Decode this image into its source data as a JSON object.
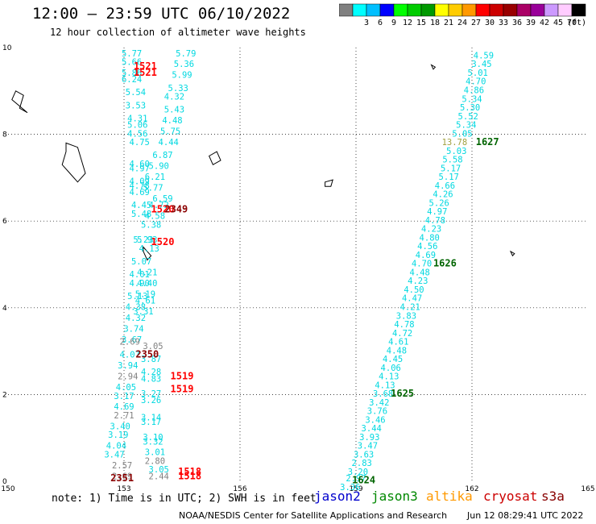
{
  "header": {
    "title": "12:00 – 23:59 UTC 06/10/2022",
    "subtitle": "12 hour collection of altimeter wave heights"
  },
  "color_scale": {
    "unit": "(ft)",
    "bins": [
      {
        "label": "",
        "color": "#808080"
      },
      {
        "label": "3",
        "color": "#00ffff"
      },
      {
        "label": "6",
        "color": "#00bfff"
      },
      {
        "label": "9",
        "color": "#0000ff"
      },
      {
        "label": "12",
        "color": "#00ff00"
      },
      {
        "label": "15",
        "color": "#00cc00"
      },
      {
        "label": "18",
        "color": "#009900"
      },
      {
        "label": "21",
        "color": "#ffff00"
      },
      {
        "label": "24",
        "color": "#ffcc00"
      },
      {
        "label": "27",
        "color": "#ff9900"
      },
      {
        "label": "30",
        "color": "#ff0000"
      },
      {
        "label": "33",
        "color": "#cc0000"
      },
      {
        "label": "36",
        "color": "#990000"
      },
      {
        "label": "39",
        "color": "#aa0066"
      },
      {
        "label": "42",
        "color": "#990099"
      },
      {
        "label": "45",
        "color": "#cc99ff"
      },
      {
        "label": "70",
        "color": "#ffccff"
      },
      {
        "label": "",
        "color": "#000000"
      }
    ]
  },
  "map": {
    "x_range": [
      150,
      165
    ],
    "y_range": [
      0,
      10
    ],
    "x_ticks": [
      "150",
      "153",
      "156",
      "159",
      "162",
      "165"
    ],
    "y_ticks": [
      "0",
      "2",
      "4",
      "6",
      "8",
      "10"
    ],
    "grid": "dotted",
    "islands": [
      {
        "name": "",
        "points": [
          [
            150.1,
            8.8
          ],
          [
            150.2,
            9.0
          ],
          [
            150.4,
            8.9
          ],
          [
            150.3,
            8.6
          ],
          [
            150.5,
            8.5
          ]
        ]
      },
      {
        "name": "",
        "points": [
          [
            151.5,
            7.8
          ],
          [
            151.8,
            7.7
          ],
          [
            151.9,
            7.4
          ],
          [
            152.0,
            7.1
          ],
          [
            151.8,
            6.9
          ],
          [
            151.6,
            7.1
          ],
          [
            151.4,
            7.3
          ],
          [
            151.5,
            7.6
          ]
        ]
      },
      {
        "name": "",
        "points": [
          [
            155.2,
            7.5
          ],
          [
            155.4,
            7.6
          ],
          [
            155.5,
            7.4
          ],
          [
            155.3,
            7.3
          ]
        ]
      },
      {
        "name": "",
        "points": [
          [
            158.2,
            6.9
          ],
          [
            158.4,
            6.95
          ],
          [
            158.35,
            6.8
          ],
          [
            158.2,
            6.8
          ]
        ]
      },
      {
        "name": "",
        "points": [
          [
            153.5,
            5.4
          ],
          [
            153.6,
            5.3
          ],
          [
            153.7,
            5.2
          ],
          [
            153.6,
            5.1
          ],
          [
            153.5,
            5.3
          ]
        ]
      },
      {
        "name": "",
        "points": [
          [
            160.95,
            9.6
          ],
          [
            161.05,
            9.55
          ],
          [
            161.0,
            9.5
          ]
        ]
      },
      {
        "name": "",
        "points": [
          [
            163.0,
            5.3
          ],
          [
            163.1,
            5.25
          ],
          [
            163.05,
            5.2
          ]
        ]
      }
    ],
    "tracks": [
      {
        "color": "#00d8e0",
        "points": [
          {
            "x": 153.2,
            "y": 9.8,
            "v": "5.77"
          },
          {
            "x": 153.2,
            "y": 9.6,
            "v": "5.66"
          },
          {
            "x": 153.2,
            "y": 9.35,
            "v": "5.86"
          },
          {
            "x": 153.2,
            "y": 9.2,
            "v": "6.24"
          },
          {
            "x": 153.3,
            "y": 8.9,
            "v": "5.54"
          },
          {
            "x": 153.3,
            "y": 8.6,
            "v": "3.53"
          },
          {
            "x": 153.35,
            "y": 8.3,
            "v": "4.31"
          },
          {
            "x": 153.35,
            "y": 8.15,
            "v": "5.06"
          },
          {
            "x": 153.35,
            "y": 7.95,
            "v": "4.56"
          },
          {
            "x": 153.4,
            "y": 7.75,
            "v": "4.75"
          },
          {
            "x": 153.4,
            "y": 7.25,
            "v": "4.60"
          },
          {
            "x": 153.4,
            "y": 7.15,
            "v": "4.97"
          },
          {
            "x": 153.4,
            "y": 6.85,
            "v": "4.09"
          },
          {
            "x": 153.4,
            "y": 6.75,
            "v": "4.78"
          },
          {
            "x": 153.4,
            "y": 6.6,
            "v": "4.69"
          },
          {
            "x": 153.45,
            "y": 6.3,
            "v": "4.45"
          },
          {
            "x": 153.45,
            "y": 6.1,
            "v": "5.48"
          },
          {
            "x": 153.5,
            "y": 5.5,
            "v": "5.23"
          },
          {
            "x": 153.45,
            "y": 5.0,
            "v": "5.07"
          },
          {
            "x": 153.4,
            "y": 4.7,
            "v": "4.01"
          },
          {
            "x": 153.4,
            "y": 4.5,
            "v": "4.90"
          },
          {
            "x": 153.35,
            "y": 4.2,
            "v": "5.13"
          },
          {
            "x": 153.3,
            "y": 3.95,
            "v": "4.38"
          },
          {
            "x": 153.3,
            "y": 3.7,
            "v": "4.32"
          },
          {
            "x": 153.25,
            "y": 3.45,
            "v": "3.74"
          },
          {
            "x": 153.2,
            "y": 3.2,
            "v": "3.67"
          },
          {
            "x": 153.15,
            "y": 2.85,
            "v": "4.07"
          },
          {
            "x": 153.1,
            "y": 2.6,
            "v": "3.94"
          },
          {
            "x": 153.05,
            "y": 2.1,
            "v": "4.05"
          },
          {
            "x": 153.0,
            "y": 1.9,
            "v": "3.17"
          },
          {
            "x": 153.0,
            "y": 1.65,
            "v": "4.69"
          },
          {
            "x": 152.9,
            "y": 1.2,
            "v": "3.40"
          },
          {
            "x": 152.85,
            "y": 1.0,
            "v": "3.19"
          },
          {
            "x": 152.8,
            "y": 0.75,
            "v": "4.04"
          },
          {
            "x": 152.75,
            "y": 0.55,
            "v": "3.47"
          }
        ]
      },
      {
        "color": "#00d8e0",
        "points": [
          {
            "x": 154.6,
            "y": 9.8,
            "v": "5.79"
          },
          {
            "x": 154.55,
            "y": 9.55,
            "v": "5.36"
          },
          {
            "x": 154.5,
            "y": 9.3,
            "v": "5.99"
          },
          {
            "x": 154.4,
            "y": 9.0,
            "v": "5.33"
          },
          {
            "x": 154.3,
            "y": 8.8,
            "v": "4.32"
          },
          {
            "x": 154.3,
            "y": 8.5,
            "v": "5.43"
          },
          {
            "x": 154.25,
            "y": 8.25,
            "v": "4.48"
          },
          {
            "x": 154.2,
            "y": 8.0,
            "v": "5.75"
          },
          {
            "x": 154.15,
            "y": 7.75,
            "v": "4.44"
          },
          {
            "x": 154.0,
            "y": 7.45,
            "v": "6.87"
          },
          {
            "x": 153.9,
            "y": 7.2,
            "v": "5.90"
          },
          {
            "x": 153.8,
            "y": 6.95,
            "v": "6.21"
          },
          {
            "x": 153.75,
            "y": 6.7,
            "v": "5.77"
          },
          {
            "x": 154.0,
            "y": 6.45,
            "v": "6.59"
          },
          {
            "x": 153.9,
            "y": 6.3,
            "v": "4.72"
          },
          {
            "x": 153.8,
            "y": 6.05,
            "v": "4.58"
          },
          {
            "x": 153.7,
            "y": 5.85,
            "v": "5.38"
          },
          {
            "x": 153.6,
            "y": 5.5,
            "v": "5.93"
          },
          {
            "x": 153.65,
            "y": 5.3,
            "v": "4.13"
          },
          {
            "x": 153.6,
            "y": 4.75,
            "v": "4.21"
          },
          {
            "x": 153.6,
            "y": 4.5,
            "v": "4.40"
          },
          {
            "x": 153.55,
            "y": 4.25,
            "v": "5.19"
          },
          {
            "x": 153.55,
            "y": 4.1,
            "v": "4.61"
          },
          {
            "x": 153.5,
            "y": 3.85,
            "v": "3.31"
          },
          {
            "x": 153.7,
            "y": 2.75,
            "v": "3.87"
          },
          {
            "x": 153.7,
            "y": 2.45,
            "v": "4.28"
          },
          {
            "x": 153.7,
            "y": 2.3,
            "v": "4.83"
          },
          {
            "x": 153.7,
            "y": 1.95,
            "v": "3.27"
          },
          {
            "x": 153.7,
            "y": 1.8,
            "v": "3.26"
          },
          {
            "x": 153.7,
            "y": 1.4,
            "v": "3.14"
          },
          {
            "x": 153.7,
            "y": 1.3,
            "v": "3.17"
          },
          {
            "x": 153.75,
            "y": 0.95,
            "v": "3.10"
          },
          {
            "x": 153.75,
            "y": 0.85,
            "v": "3.32"
          },
          {
            "x": 153.8,
            "y": 0.6,
            "v": "3.01"
          },
          {
            "x": 153.9,
            "y": 0.2,
            "v": "3.05"
          }
        ]
      },
      {
        "color": "#808080",
        "points": [
          {
            "x": 153.15,
            "y": 3.15,
            "v": "2.69"
          },
          {
            "x": 153.1,
            "y": 2.35,
            "v": "2.94"
          },
          {
            "x": 153.0,
            "y": 1.45,
            "v": "2.71"
          },
          {
            "x": 152.95,
            "y": 0.3,
            "v": "2.57"
          },
          {
            "x": 152.95,
            "y": 0.05,
            "v": "2.69"
          },
          {
            "x": 153.8,
            "y": 0.4,
            "v": "2.80"
          },
          {
            "x": 153.9,
            "y": 0.05,
            "v": "2.44"
          },
          {
            "x": 153.75,
            "y": 3.05,
            "v": "3.05"
          }
        ]
      },
      {
        "color": "#00d8e0",
        "points": [
          {
            "x": 162.3,
            "y": 9.75,
            "v": "4.59"
          },
          {
            "x": 162.25,
            "y": 9.55,
            "v": "3.45"
          },
          {
            "x": 162.15,
            "y": 9.35,
            "v": "5.01"
          },
          {
            "x": 162.1,
            "y": 9.15,
            "v": "4.70"
          },
          {
            "x": 162.05,
            "y": 8.95,
            "v": "4.86"
          },
          {
            "x": 162.0,
            "y": 8.75,
            "v": "5.34"
          },
          {
            "x": 161.95,
            "y": 8.55,
            "v": "5.30"
          },
          {
            "x": 161.9,
            "y": 8.35,
            "v": "5.52"
          },
          {
            "x": 161.85,
            "y": 8.15,
            "v": "5.34"
          },
          {
            "x": 161.75,
            "y": 7.95,
            "v": "5.05"
          },
          {
            "x": 161.6,
            "y": 7.55,
            "v": "5.03"
          },
          {
            "x": 161.5,
            "y": 7.35,
            "v": "5.58"
          },
          {
            "x": 161.45,
            "y": 7.15,
            "v": "5.17"
          },
          {
            "x": 161.4,
            "y": 6.95,
            "v": "5.17"
          },
          {
            "x": 161.3,
            "y": 6.75,
            "v": "4.66"
          },
          {
            "x": 161.25,
            "y": 6.55,
            "v": "4.26"
          },
          {
            "x": 161.15,
            "y": 6.35,
            "v": "5.26"
          },
          {
            "x": 161.1,
            "y": 6.15,
            "v": "4.97"
          },
          {
            "x": 161.05,
            "y": 5.95,
            "v": "4.78"
          },
          {
            "x": 160.95,
            "y": 5.75,
            "v": "4.23"
          },
          {
            "x": 160.9,
            "y": 5.55,
            "v": "4.80"
          },
          {
            "x": 160.85,
            "y": 5.35,
            "v": "4.56"
          },
          {
            "x": 160.8,
            "y": 5.15,
            "v": "4.69"
          },
          {
            "x": 160.7,
            "y": 4.95,
            "v": "4.70"
          },
          {
            "x": 160.65,
            "y": 4.75,
            "v": "4.48"
          },
          {
            "x": 160.6,
            "y": 4.55,
            "v": "4.23"
          },
          {
            "x": 160.5,
            "y": 4.35,
            "v": "4.50"
          },
          {
            "x": 160.45,
            "y": 4.15,
            "v": "4.47"
          },
          {
            "x": 160.4,
            "y": 3.95,
            "v": "4.21"
          },
          {
            "x": 160.3,
            "y": 3.75,
            "v": "3.83"
          },
          {
            "x": 160.25,
            "y": 3.55,
            "v": "4.78"
          },
          {
            "x": 160.2,
            "y": 3.35,
            "v": "4.72"
          },
          {
            "x": 160.1,
            "y": 3.15,
            "v": "4.61"
          },
          {
            "x": 160.05,
            "y": 2.95,
            "v": "4.48"
          },
          {
            "x": 159.95,
            "y": 2.75,
            "v": "4.45"
          },
          {
            "x": 159.9,
            "y": 2.55,
            "v": "4.06"
          },
          {
            "x": 159.85,
            "y": 2.35,
            "v": "4.13"
          },
          {
            "x": 159.75,
            "y": 2.15,
            "v": "4.13"
          },
          {
            "x": 159.7,
            "y": 1.95,
            "v": "3.68"
          },
          {
            "x": 159.6,
            "y": 1.75,
            "v": "3.42"
          },
          {
            "x": 159.55,
            "y": 1.55,
            "v": "3.76"
          },
          {
            "x": 159.5,
            "y": 1.35,
            "v": "3.46"
          },
          {
            "x": 159.4,
            "y": 1.15,
            "v": "3.44"
          },
          {
            "x": 159.35,
            "y": 0.95,
            "v": "3.93"
          },
          {
            "x": 159.3,
            "y": 0.75,
            "v": "3.47"
          },
          {
            "x": 159.2,
            "y": 0.55,
            "v": "3.63"
          },
          {
            "x": 159.15,
            "y": 0.35,
            "v": "2.83"
          },
          {
            "x": 159.05,
            "y": 0.15,
            "v": "3.20"
          },
          {
            "x": 159.0,
            "y": 0.0,
            "v": "2.97"
          },
          {
            "x": 158.85,
            "y": -0.2,
            "v": "3.36"
          }
        ]
      }
    ],
    "extra_labels": [
      {
        "x": 161.55,
        "y": 7.75,
        "v": "13.78",
        "color": "#a0a040"
      }
    ],
    "time_labels": [
      {
        "x": 153.55,
        "y": 9.5,
        "v": "1521",
        "color": "#ff0000"
      },
      {
        "x": 153.55,
        "y": 9.35,
        "v": "1521",
        "color": "#ff0000"
      },
      {
        "x": 154.0,
        "y": 6.2,
        "v": "1520",
        "color": "#ff0000"
      },
      {
        "x": 154.35,
        "y": 6.2,
        "v": "2349",
        "color": "#8b0000"
      },
      {
        "x": 154.0,
        "y": 5.45,
        "v": "1520",
        "color": "#ff0000"
      },
      {
        "x": 153.6,
        "y": 2.85,
        "v": "2350",
        "color": "#8b0000"
      },
      {
        "x": 154.5,
        "y": 2.35,
        "v": "1519",
        "color": "#ff0000"
      },
      {
        "x": 154.5,
        "y": 2.05,
        "v": "1519",
        "color": "#ff0000"
      },
      {
        "x": 152.95,
        "y": 0.0,
        "v": "2351",
        "color": "#8b0000"
      },
      {
        "x": 154.7,
        "y": 0.15,
        "v": "1518",
        "color": "#ff0000"
      },
      {
        "x": 154.7,
        "y": 0.05,
        "v": "1518",
        "color": "#ff0000"
      },
      {
        "x": 162.4,
        "y": 7.75,
        "v": "1627",
        "color": "#006400"
      },
      {
        "x": 161.3,
        "y": 4.95,
        "v": "1626",
        "color": "#006400"
      },
      {
        "x": 160.2,
        "y": 1.95,
        "v": "1625",
        "color": "#006400"
      },
      {
        "x": 159.2,
        "y": -0.05,
        "v": "1624",
        "color": "#006400"
      }
    ]
  },
  "footer": {
    "note": "note: 1) Time is in UTC; 2) SWH is in feet",
    "satellites": [
      {
        "name": "jason2",
        "color": "#0000cc"
      },
      {
        "name": "jason3",
        "color": "#008800"
      },
      {
        "name": "altika",
        "color": "#ff9900"
      },
      {
        "name": "cryosat",
        "color": "#cc0000"
      },
      {
        "name": "s3a",
        "color": "#880000"
      }
    ],
    "credit": "NOAA/NESDIS Center for Satellite Applications and Research",
    "generated": "Jun 12 08:29:41 UTC 2022"
  }
}
